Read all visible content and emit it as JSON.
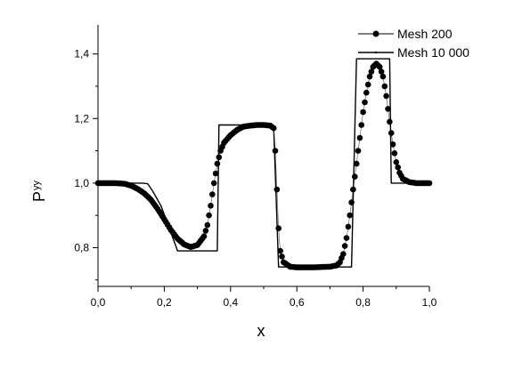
{
  "chart_data": {
    "type": "line",
    "xlabel": "x",
    "ylabel": "P",
    "ylabel_subscript": "yy",
    "xlim": [
      0.0,
      1.0
    ],
    "ylim": [
      0.68,
      1.49
    ],
    "x_ticks": [
      0.0,
      0.2,
      0.4,
      0.6,
      0.8,
      1.0
    ],
    "x_tick_labels": [
      "0,0",
      "0,2",
      "0,4",
      "0,6",
      "0,8",
      "1,0"
    ],
    "y_ticks": [
      0.8,
      1.0,
      1.2,
      1.4
    ],
    "y_tick_labels": [
      "0,8",
      "1,0",
      "1,2",
      "1,4"
    ],
    "grid": false,
    "legend_position": "top-right",
    "series": [
      {
        "name": "Mesh 200",
        "style": "dots",
        "color": "#000000",
        "points": [
          [
            0.0,
            1.0
          ],
          [
            0.05,
            1.0
          ],
          [
            0.08,
            0.998
          ],
          [
            0.1,
            0.992
          ],
          [
            0.12,
            0.982
          ],
          [
            0.14,
            0.968
          ],
          [
            0.16,
            0.948
          ],
          [
            0.18,
            0.92
          ],
          [
            0.2,
            0.888
          ],
          [
            0.22,
            0.855
          ],
          [
            0.24,
            0.828
          ],
          [
            0.26,
            0.81
          ],
          [
            0.28,
            0.802
          ],
          [
            0.3,
            0.808
          ],
          [
            0.32,
            0.835
          ],
          [
            0.33,
            0.87
          ],
          [
            0.34,
            0.93
          ],
          [
            0.35,
            1.0
          ],
          [
            0.36,
            1.06
          ],
          [
            0.37,
            1.1
          ],
          [
            0.38,
            1.125
          ],
          [
            0.4,
            1.148
          ],
          [
            0.42,
            1.165
          ],
          [
            0.44,
            1.175
          ],
          [
            0.46,
            1.178
          ],
          [
            0.48,
            1.18
          ],
          [
            0.5,
            1.18
          ],
          [
            0.52,
            1.178
          ],
          [
            0.53,
            1.17
          ],
          [
            0.535,
            1.1
          ],
          [
            0.54,
            0.98
          ],
          [
            0.545,
            0.86
          ],
          [
            0.55,
            0.79
          ],
          [
            0.56,
            0.755
          ],
          [
            0.58,
            0.741
          ],
          [
            0.6,
            0.739
          ],
          [
            0.65,
            0.739
          ],
          [
            0.7,
            0.741
          ],
          [
            0.72,
            0.745
          ],
          [
            0.73,
            0.755
          ],
          [
            0.74,
            0.78
          ],
          [
            0.75,
            0.83
          ],
          [
            0.76,
            0.9
          ],
          [
            0.77,
            0.98
          ],
          [
            0.78,
            1.06
          ],
          [
            0.79,
            1.14
          ],
          [
            0.8,
            1.22
          ],
          [
            0.81,
            1.28
          ],
          [
            0.82,
            1.33
          ],
          [
            0.83,
            1.36
          ],
          [
            0.84,
            1.37
          ],
          [
            0.85,
            1.36
          ],
          [
            0.86,
            1.33
          ],
          [
            0.87,
            1.27
          ],
          [
            0.88,
            1.19
          ],
          [
            0.89,
            1.12
          ],
          [
            0.9,
            1.065
          ],
          [
            0.91,
            1.032
          ],
          [
            0.92,
            1.013
          ],
          [
            0.94,
            1.003
          ],
          [
            0.96,
            1.0
          ],
          [
            1.0,
            1.0
          ]
        ]
      },
      {
        "name": "Mesh 10 000",
        "style": "line",
        "color": "#000000",
        "points": [
          [
            0.0,
            1.0
          ],
          [
            0.135,
            1.0
          ],
          [
            0.15,
            0.998
          ],
          [
            0.165,
            0.975
          ],
          [
            0.19,
            0.93
          ],
          [
            0.215,
            0.86
          ],
          [
            0.235,
            0.805
          ],
          [
            0.24,
            0.79
          ],
          [
            0.36,
            0.79
          ],
          [
            0.365,
            1.18
          ],
          [
            0.52,
            1.18
          ],
          [
            0.53,
            1.175
          ],
          [
            0.545,
            0.74
          ],
          [
            0.765,
            0.74
          ],
          [
            0.78,
            1.385
          ],
          [
            0.88,
            1.385
          ],
          [
            0.885,
            1.0
          ],
          [
            1.0,
            1.0
          ]
        ]
      }
    ]
  }
}
